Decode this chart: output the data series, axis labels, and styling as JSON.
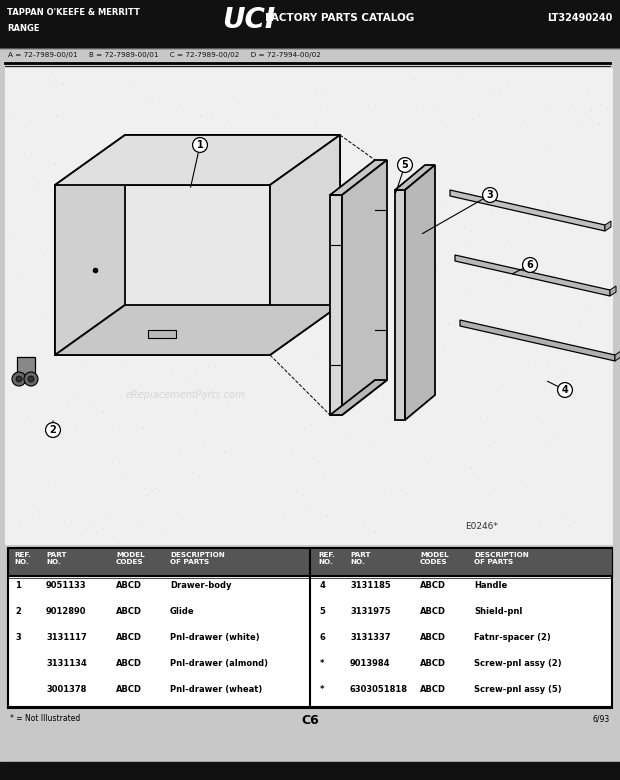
{
  "title_left": "TAPPAN O'KEEFE & MERRITT",
  "title_center_logo": "UCI",
  "title_center_text": "FACTORY PARTS CATALOG",
  "title_right": "LT32490240",
  "subtitle_left": "RANGE",
  "model_line": "A = 72-7989-00/01     B = 72-7989-00/01     C = 72-7989-00/02     D = 72-7994-00/02",
  "diagram_label": "E0246",
  "page_label": "C6",
  "date_label": "6/93",
  "footnote": "* = Not Illustrated",
  "bg_color": "#c8c8c8",
  "parts_left": [
    {
      "ref": "1",
      "part": "9051133",
      "model": "ABCD",
      "desc": "Drawer-body"
    },
    {
      "ref": "2",
      "part": "9012890",
      "model": "ABCD",
      "desc": "Glide"
    },
    {
      "ref": "3",
      "part": "3131117",
      "model": "ABCD",
      "desc": "Pnl-drawer (white)"
    },
    {
      "ref": "",
      "part": "3131134",
      "model": "ABCD",
      "desc": "Pnl-drawer (almond)"
    },
    {
      "ref": "",
      "part": "3001378",
      "model": "ABCD",
      "desc": "Pnl-drawer (wheat)"
    }
  ],
  "parts_right": [
    {
      "ref": "4",
      "part": "3131185",
      "model": "ABCD",
      "desc": "Handle"
    },
    {
      "ref": "5",
      "part": "3131975",
      "model": "ABCD",
      "desc": "Shield-pnl"
    },
    {
      "ref": "6",
      "part": "3131337",
      "model": "ABCD",
      "desc": "Fatnr-spacer (2)"
    },
    {
      "ref": "*",
      "part": "9013984",
      "model": "ABCD",
      "desc": "Screw-pnl assy (2)"
    },
    {
      "ref": "*",
      "part": "6303051818",
      "model": "ABCD",
      "desc": "Screw-pnl assy (5)"
    }
  ]
}
